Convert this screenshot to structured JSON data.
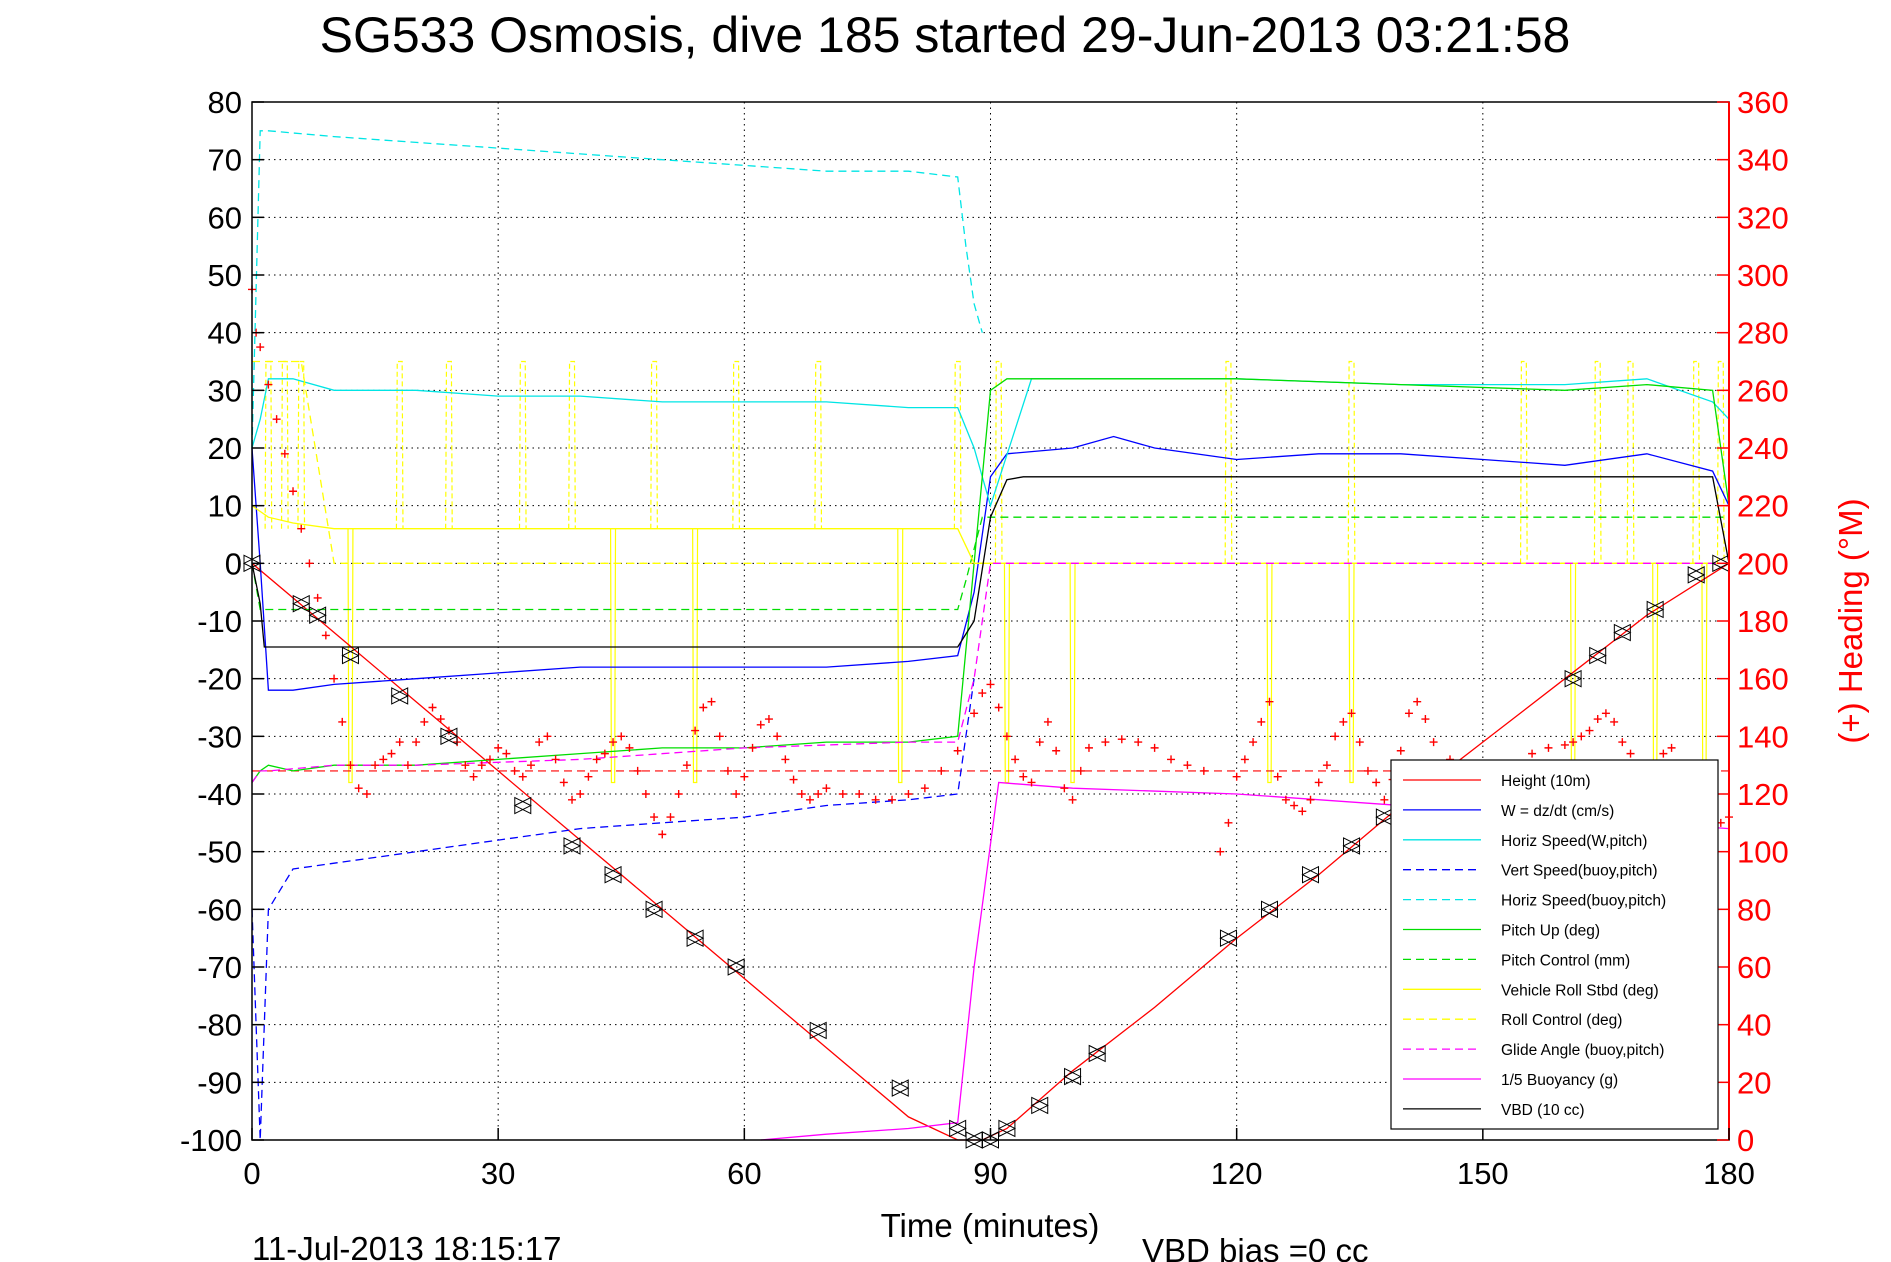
{
  "chart_data": {
    "type": "line",
    "title": "SG533 Osmosis, dive 185 started 29-Jun-2013 03:21:58",
    "xlabel": "Time (minutes)",
    "ylabel_right": "(+) Heading (°M)",
    "footer_left": "11-Jul-2013 18:15:17",
    "footer_right": "VBD bias =0 cc",
    "xlim": [
      0,
      180
    ],
    "ylim": [
      -100,
      80
    ],
    "ylim_right": [
      0,
      360
    ],
    "xticks": [
      "0",
      "30",
      "60",
      "90",
      "120",
      "150",
      "180"
    ],
    "yticks": [
      "80",
      "70",
      "60",
      "50",
      "40",
      "30",
      "20",
      "10",
      "0",
      "-10",
      "-20",
      "-30",
      "-40",
      "-50",
      "-60",
      "-70",
      "-80",
      "-90",
      "-100"
    ],
    "yticks_right": [
      "360",
      "340",
      "320",
      "300",
      "280",
      "260",
      "240",
      "220",
      "200",
      "180",
      "160",
      "140",
      "120",
      "100",
      "80",
      "60",
      "40",
      "20",
      "0"
    ],
    "grid": true,
    "legend_position": "lower-right",
    "colors": {
      "red": "#ff0000",
      "blue": "#0000ff",
      "cyan": "#00e5e5",
      "green": "#00dd00",
      "yellow": "#ffff00",
      "magenta": "#ff00ff",
      "black": "#000000"
    },
    "series": [
      {
        "name": "Height (10m)",
        "color": "#ff0000",
        "style": "solid",
        "x": [
          0,
          10,
          20,
          30,
          40,
          50,
          60,
          70,
          80,
          86,
          89,
          92,
          100,
          110,
          120,
          130,
          140,
          150,
          160,
          170,
          180
        ],
        "y": [
          0,
          -12,
          -24,
          -36,
          -48,
          -60,
          -72,
          -84,
          -96,
          -100,
          -100,
          -98,
          -88,
          -77,
          -65,
          -54,
          -42,
          -31,
          -20,
          -9,
          0
        ]
      },
      {
        "name": "W = dz/dt (cm/s)",
        "color": "#0000ff",
        "style": "solid",
        "x": [
          0,
          1,
          2,
          5,
          10,
          20,
          30,
          40,
          50,
          60,
          70,
          80,
          86,
          88,
          90,
          92,
          100,
          105,
          110,
          120,
          130,
          140,
          150,
          160,
          170,
          178,
          180
        ],
        "y": [
          20,
          0,
          -22,
          -22,
          -21,
          -20,
          -19,
          -18,
          -18,
          -18,
          -18,
          -17,
          -16,
          -5,
          15,
          19,
          20,
          22,
          20,
          18,
          19,
          19,
          18,
          17,
          19,
          16,
          10
        ]
      },
      {
        "name": "Horiz Speed(W,pitch)",
        "color": "#00e5e5",
        "style": "solid",
        "x": [
          0,
          1,
          2,
          5,
          10,
          20,
          30,
          40,
          50,
          60,
          70,
          80,
          86,
          88,
          90,
          95,
          100,
          120,
          140,
          160,
          170,
          178,
          180
        ],
        "y": [
          20,
          25,
          32,
          32,
          30,
          30,
          29,
          29,
          28,
          28,
          28,
          27,
          27,
          20,
          10,
          32,
          32,
          32,
          31,
          31,
          32,
          28,
          25
        ]
      },
      {
        "name": "Vert Speed(buoy,pitch)",
        "color": "#0000ff",
        "style": "dashed",
        "x": [
          0,
          1,
          2,
          5,
          10,
          20,
          30,
          40,
          50,
          60,
          70,
          80,
          86,
          88
        ],
        "y": [
          -60,
          -100,
          -60,
          -53,
          -52,
          -50,
          -48,
          -46,
          -45,
          -44,
          -42,
          -41,
          -40,
          -20
        ]
      },
      {
        "name": "Horiz Speed(buoy,pitch)",
        "color": "#00e5e5",
        "style": "dashed",
        "x": [
          0,
          1,
          2,
          10,
          20,
          30,
          40,
          50,
          60,
          70,
          80,
          86,
          87,
          88,
          89
        ],
        "y": [
          20,
          75,
          75,
          74,
          73,
          72,
          71,
          70,
          69,
          68,
          68,
          67,
          55,
          45,
          40
        ]
      },
      {
        "name": "Pitch Up (deg)",
        "color": "#00dd00",
        "style": "solid",
        "x": [
          0,
          1,
          2,
          5,
          10,
          20,
          30,
          40,
          50,
          60,
          70,
          80,
          86,
          88,
          90,
          92,
          100,
          120,
          140,
          160,
          170,
          178,
          180
        ],
        "y": [
          -38,
          -36,
          -35,
          -36,
          -35,
          -35,
          -34,
          -33,
          -32,
          -32,
          -31,
          -31,
          -30,
          0,
          30,
          32,
          32,
          32,
          31,
          30,
          31,
          30,
          10
        ]
      },
      {
        "name": "Pitch Control (mm)",
        "color": "#00dd00",
        "style": "dashed",
        "x": [
          0,
          1,
          2,
          86,
          87,
          89,
          90,
          92,
          180
        ],
        "y": [
          0,
          -8,
          -8,
          -8,
          -3,
          8,
          8,
          8,
          8
        ]
      },
      {
        "name": "Vehicle Roll Stbd (deg)",
        "color": "#ffff00",
        "style": "solid",
        "x": [
          0,
          2,
          5,
          10,
          20,
          30,
          40,
          50,
          60,
          70,
          80,
          86,
          88,
          90,
          100,
          110,
          120,
          130,
          140,
          150,
          160,
          170,
          180
        ],
        "y": [
          10,
          8,
          7,
          6,
          6,
          6,
          6,
          6,
          6,
          6,
          6,
          6,
          0,
          0,
          0,
          0,
          0,
          0,
          0,
          0,
          0,
          0,
          0
        ]
      },
      {
        "name": "Roll Control (deg)",
        "color": "#ffff00",
        "style": "dashed",
        "x": [
          0,
          2,
          6,
          10,
          20,
          40,
          60,
          86,
          88,
          90,
          120,
          150,
          180
        ],
        "y": [
          35,
          35,
          35,
          0,
          0,
          0,
          0,
          0,
          0,
          0,
          0,
          0,
          0
        ]
      },
      {
        "name": "Glide Angle (buoy,pitch)",
        "color": "#ff00ff",
        "style": "dashed",
        "x": [
          0,
          1,
          2,
          10,
          20,
          40,
          60,
          80,
          86,
          88,
          90,
          120,
          150,
          180
        ],
        "y": [
          -38,
          -36,
          -36,
          -35,
          -35,
          -34,
          -32,
          -31,
          -31,
          -20,
          0,
          0,
          0,
          0
        ]
      },
      {
        "name": "1/5 Buoyancy (g)",
        "color": "#ff00ff",
        "style": "solid",
        "x": [
          62,
          70,
          80,
          86,
          88,
          91,
          100,
          120,
          140,
          150,
          160,
          170,
          180
        ],
        "y": [
          -100,
          -99,
          -98,
          -97,
          -70,
          -38,
          -39,
          -40,
          -42,
          -43,
          -44,
          -45,
          -46
        ]
      },
      {
        "name": "VBD (10 cc)",
        "color": "#000000",
        "style": "solid",
        "x": [
          0,
          1,
          1.5,
          86,
          88,
          90,
          92,
          94,
          178,
          180
        ],
        "y": [
          0,
          -7,
          -14.5,
          -14.5,
          -10,
          8,
          14.5,
          15,
          15,
          0
        ]
      }
    ],
    "heading": {
      "name": "(+) Heading",
      "color": "#ff0000",
      "marker": "+",
      "reference_line": 128,
      "x": [
        0,
        0.5,
        1,
        2,
        3,
        4,
        5,
        6,
        7,
        8,
        9,
        10,
        11,
        12,
        13,
        14,
        15,
        16,
        17,
        18,
        19,
        20,
        21,
        22,
        23,
        24,
        25,
        26,
        27,
        28,
        29,
        30,
        31,
        32,
        33,
        34,
        35,
        36,
        37,
        38,
        39,
        40,
        41,
        42,
        43,
        44,
        45,
        46,
        47,
        48,
        49,
        50,
        51,
        52,
        53,
        54,
        55,
        56,
        57,
        58,
        59,
        60,
        61,
        62,
        63,
        64,
        65,
        66,
        67,
        68,
        69,
        70,
        72,
        74,
        76,
        78,
        80,
        82,
        84,
        86,
        88,
        89,
        90,
        91,
        92,
        93,
        94,
        95,
        96,
        97,
        98,
        99,
        100,
        101,
        102,
        104,
        106,
        108,
        110,
        112,
        114,
        116,
        118,
        119,
        120,
        121,
        122,
        123,
        124,
        125,
        126,
        127,
        128,
        129,
        130,
        131,
        132,
        133,
        134,
        135,
        136,
        137,
        138,
        139,
        140,
        141,
        142,
        143,
        144,
        146,
        148,
        150,
        152,
        154,
        156,
        158,
        160,
        161,
        162,
        163,
        164,
        165,
        166,
        167,
        168,
        169,
        170,
        171,
        172,
        173,
        174,
        175,
        176,
        177,
        178,
        179,
        180
      ],
      "y": [
        295,
        280,
        275,
        262,
        250,
        238,
        225,
        212,
        200,
        188,
        175,
        160,
        145,
        130,
        122,
        120,
        130,
        132,
        134,
        138,
        130,
        138,
        145,
        150,
        146,
        142,
        138,
        130,
        126,
        130,
        132,
        136,
        134,
        128,
        126,
        130,
        138,
        140,
        132,
        124,
        118,
        120,
        126,
        132,
        134,
        138,
        140,
        136,
        128,
        120,
        112,
        106,
        112,
        120,
        130,
        142,
        150,
        152,
        140,
        128,
        120,
        126,
        136,
        144,
        146,
        140,
        132,
        125,
        120,
        118,
        120,
        122,
        120,
        120,
        118,
        118,
        120,
        122,
        128,
        135,
        148,
        155,
        158,
        150,
        140,
        132,
        126,
        124,
        138,
        145,
        135,
        122,
        118,
        128,
        136,
        138,
        139,
        138,
        136,
        132,
        130,
        128,
        100,
        110,
        126,
        132,
        138,
        145,
        152,
        126,
        118,
        116,
        114,
        118,
        124,
        130,
        140,
        145,
        148,
        138,
        128,
        124,
        118,
        125,
        135,
        148,
        152,
        146,
        138,
        132,
        124,
        120,
        122,
        128,
        134,
        136,
        137,
        138,
        140,
        142,
        146,
        148,
        145,
        138,
        134,
        130,
        128,
        130,
        134,
        136,
        128,
        122,
        115,
        112,
        108,
        110,
        112
      ]
    },
    "height_markers": {
      "x": [
        0,
        6,
        8,
        12,
        18,
        24,
        33,
        39,
        44,
        49,
        54,
        59,
        69,
        79,
        86,
        88,
        90,
        92,
        96,
        100,
        103,
        119,
        124,
        129,
        134,
        138,
        161,
        164,
        167,
        171,
        176,
        179
      ],
      "y": [
        0,
        -7,
        -9,
        -16,
        -23,
        -30,
        -42,
        -49,
        -54,
        -60,
        -65,
        -70,
        -81,
        -91,
        -98,
        -100,
        -100,
        -98,
        -94,
        -89,
        -85,
        -65,
        -60,
        -54,
        -49,
        -44,
        -20,
        -16,
        -12,
        -8,
        -2,
        0
      ]
    },
    "yellow_spikes": {
      "up_x": [
        2,
        4,
        6,
        18,
        24,
        33,
        39,
        49,
        59,
        69,
        86,
        91,
        119,
        134,
        155,
        164,
        168,
        176,
        179
      ],
      "up_y": 35,
      "down_x": [
        12,
        44,
        54,
        79,
        92,
        100,
        124,
        134,
        161,
        171,
        177
      ],
      "down_y": -38
    }
  }
}
